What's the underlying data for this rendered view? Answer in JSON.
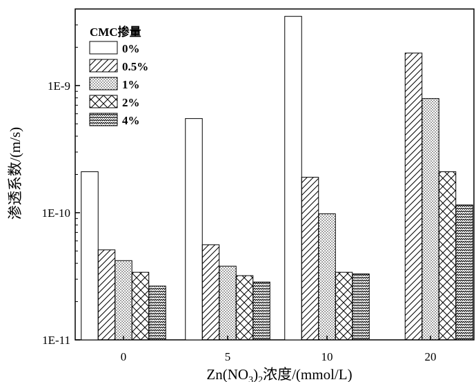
{
  "chart_data": {
    "type": "bar",
    "title": "",
    "xlabel": "Zn(NO3)2浓度/(mmol/L)",
    "xlabel_parts": {
      "pre": "Zn(NO",
      "sub1": "3",
      "mid": ")",
      "sub2": "2",
      "post": "浓度/(mmol/L)"
    },
    "ylabel": "渗透系数/(m/s)",
    "y_scale": "log",
    "ylim": [
      1e-11,
      4e-09
    ],
    "y_ticks": [
      {
        "value": 1e-11,
        "label": "1E-11"
      },
      {
        "value": 1e-10,
        "label": "1E-10"
      },
      {
        "value": 1e-09,
        "label": "1E-9"
      }
    ],
    "categories": [
      "0",
      "5",
      "10",
      "20"
    ],
    "legend_title": "CMC掺量",
    "legend_position": "top-left",
    "grid": false,
    "series": [
      {
        "name": "0%",
        "pattern": "blank",
        "values": [
          2.1e-10,
          5.5e-10,
          3.5e-09,
          null
        ]
      },
      {
        "name": "0.5%",
        "pattern": "diagonal",
        "values": [
          5.1e-11,
          5.6e-11,
          1.9e-10,
          1.8e-09
        ]
      },
      {
        "name": "1%",
        "pattern": "dots",
        "values": [
          4.2e-11,
          3.8e-11,
          9.8e-11,
          7.9e-10
        ]
      },
      {
        "name": "2%",
        "pattern": "crosshatch",
        "values": [
          3.4e-11,
          3.2e-11,
          3.4e-11,
          2.1e-10
        ]
      },
      {
        "name": "4%",
        "pattern": "wave",
        "values": [
          2.65e-11,
          2.85e-11,
          3.3e-11,
          1.15e-10
        ]
      }
    ]
  }
}
